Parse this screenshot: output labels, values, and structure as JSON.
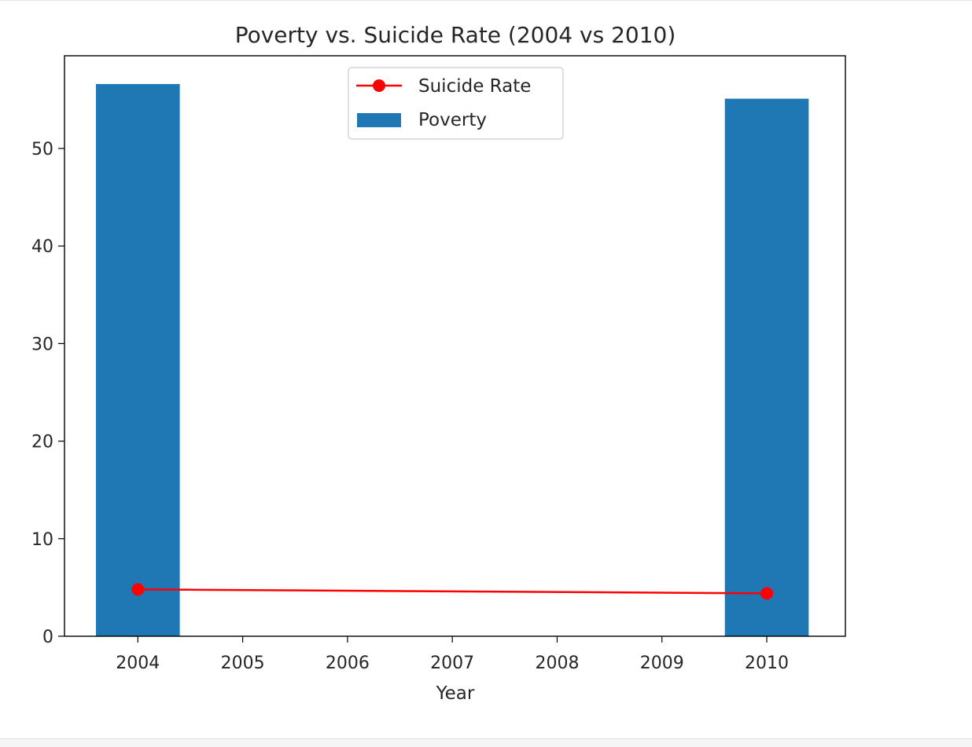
{
  "chart_data": {
    "type": "bar",
    "title": "Poverty vs. Suicide Rate (2004 vs 2010)",
    "xlabel": "Year",
    "ylabel": "",
    "xlim": [
      2003.3,
      2010.75
    ],
    "ylim": [
      0,
      59.5
    ],
    "xticks": [
      2004,
      2005,
      2006,
      2007,
      2008,
      2009,
      2010
    ],
    "yticks": [
      0,
      10,
      20,
      30,
      40,
      50
    ],
    "bar_width": 0.8,
    "grid": false,
    "legend_position": "upper center",
    "series": [
      {
        "name": "Suicide Rate",
        "kind": "line",
        "marker": "circle",
        "color": "#ff0000",
        "x": [
          2004,
          2010
        ],
        "values": [
          4.8,
          4.4
        ]
      },
      {
        "name": "Poverty",
        "kind": "bar",
        "color": "#1f77b4",
        "x": [
          2004,
          2010
        ],
        "values": [
          56.6,
          55.1
        ]
      }
    ]
  }
}
